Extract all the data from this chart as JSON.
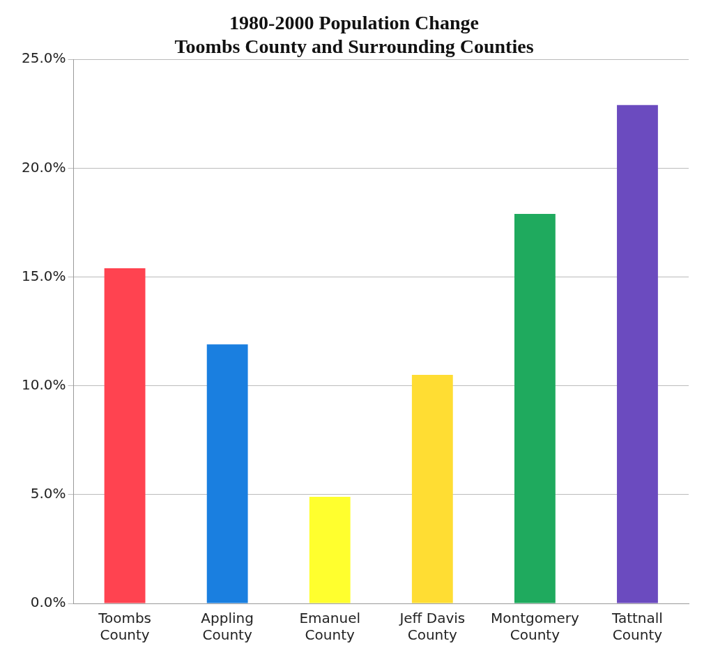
{
  "chart_data": {
    "type": "bar",
    "title": "1980-2000 Population Change\nToombs County and Surrounding Counties",
    "categories": [
      "Toombs County",
      "Appling County",
      "Emanuel County",
      "Jeff Davis County",
      "Montgomery County",
      "Tattnall County"
    ],
    "values": [
      15.4,
      11.9,
      4.9,
      10.5,
      17.9,
      22.9
    ],
    "colors": [
      "#ff4350",
      "#1a7fe0",
      "#ffff2e",
      "#ffdd33",
      "#1faa5e",
      "#6b4bbf"
    ],
    "ylim": [
      0,
      25
    ],
    "yticks": [
      {
        "value": 0,
        "label": "0.0%"
      },
      {
        "value": 5,
        "label": "5.0%"
      },
      {
        "value": 10,
        "label": "10.0%"
      },
      {
        "value": 15,
        "label": "15.0%"
      },
      {
        "value": 20,
        "label": "20.0%"
      },
      {
        "value": 25,
        "label": "25.0%"
      }
    ],
    "grid": "y",
    "legend": false
  }
}
